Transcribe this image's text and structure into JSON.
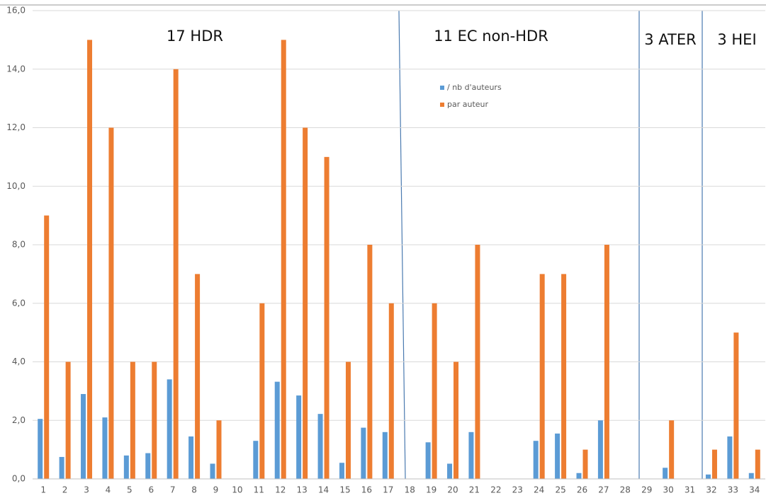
{
  "chart_data": {
    "type": "bar",
    "categories": [
      "1",
      "2",
      "3",
      "4",
      "5",
      "6",
      "7",
      "8",
      "9",
      "10",
      "11",
      "12",
      "13",
      "14",
      "15",
      "16",
      "17",
      "18",
      "19",
      "20",
      "21",
      "22",
      "23",
      "24",
      "25",
      "26",
      "27",
      "28",
      "29",
      "30",
      "31",
      "32",
      "33",
      "34"
    ],
    "series": [
      {
        "name": "/ nb d'auteurs",
        "color": "#5b9bd5",
        "values": [
          2.05,
          0.75,
          2.9,
          2.1,
          0.8,
          0.88,
          3.4,
          1.45,
          0.52,
          0,
          1.3,
          3.32,
          2.85,
          2.22,
          0.55,
          1.75,
          1.6,
          0,
          1.25,
          0.52,
          1.6,
          0,
          0,
          1.3,
          1.55,
          0.2,
          2.0,
          0,
          0,
          0.38,
          0,
          0.15,
          1.45,
          0.2
        ]
      },
      {
        "name": "par auteur",
        "color": "#ed7d31",
        "values": [
          9,
          4,
          15,
          12,
          4,
          4,
          14,
          7,
          2,
          0,
          6,
          15,
          12,
          11,
          4,
          8,
          6,
          0,
          6,
          4,
          8,
          0,
          0,
          7,
          7,
          1,
          8,
          0,
          0,
          2,
          0,
          1,
          5,
          1
        ]
      }
    ],
    "ylim": [
      0,
      16
    ],
    "yticks": [
      {
        "value": 0,
        "label": "0,0"
      },
      {
        "value": 2,
        "label": "2,0"
      },
      {
        "value": 4,
        "label": "4,0"
      },
      {
        "value": 6,
        "label": "6,0"
      },
      {
        "value": 8,
        "label": "8,0"
      },
      {
        "value": 10,
        "label": "10,0"
      },
      {
        "value": 12,
        "label": "12,0"
      },
      {
        "value": 14,
        "label": "14,0"
      },
      {
        "value": 16,
        "label": "16,0"
      }
    ],
    "grid": true,
    "annotations": [
      "17 HDR",
      "11 EC non-HDR",
      "3 ATER",
      "3 HEI"
    ]
  }
}
